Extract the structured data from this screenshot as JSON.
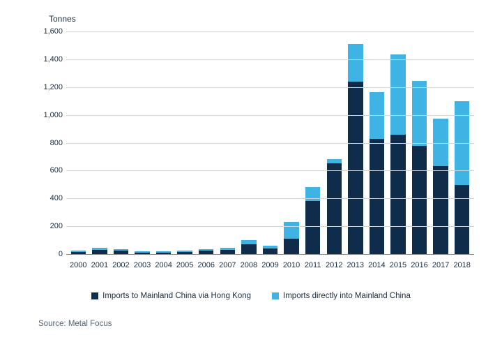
{
  "chart": {
    "type": "stacked-bar",
    "y_axis_title": "Tonnes",
    "ylim": [
      0,
      1600
    ],
    "ytick_step": 200,
    "yticks": [
      "0",
      "200",
      "400",
      "600",
      "800",
      "1,000",
      "1,200",
      "1,400",
      "1,600"
    ],
    "categories": [
      "2000",
      "2001",
      "2002",
      "2003",
      "2004",
      "2005",
      "2006",
      "2007",
      "2008",
      "2009",
      "2010",
      "2011",
      "2012",
      "2013",
      "2014",
      "2015",
      "2016",
      "2017",
      "2018"
    ],
    "series": [
      {
        "name": "Imports to Mainland China via Hong Kong",
        "color": "#0f2c4a",
        "values": [
          15,
          30,
          25,
          10,
          10,
          15,
          25,
          30,
          70,
          40,
          110,
          380,
          650,
          1240,
          830,
          860,
          780,
          630,
          495
        ]
      },
      {
        "name": "Imports directly into Mainland China",
        "color": "#3fb3e4",
        "values": [
          10,
          15,
          12,
          8,
          8,
          10,
          12,
          15,
          30,
          20,
          120,
          100,
          30,
          270,
          335,
          575,
          465,
          345,
          605
        ]
      }
    ],
    "background_color": "#ffffff",
    "grid_color": "#d0d5da",
    "axis_color": "#888888",
    "label_fontsize": 11,
    "title_fontsize": 12,
    "bar_width": 0.7
  },
  "legend": {
    "items": [
      {
        "label": "Imports to Mainland China via Hong Kong",
        "color": "#0f2c4a"
      },
      {
        "label": "Imports directly into Mainland China",
        "color": "#3fb3e4"
      }
    ]
  },
  "source_text": "Source: Metal Focus"
}
